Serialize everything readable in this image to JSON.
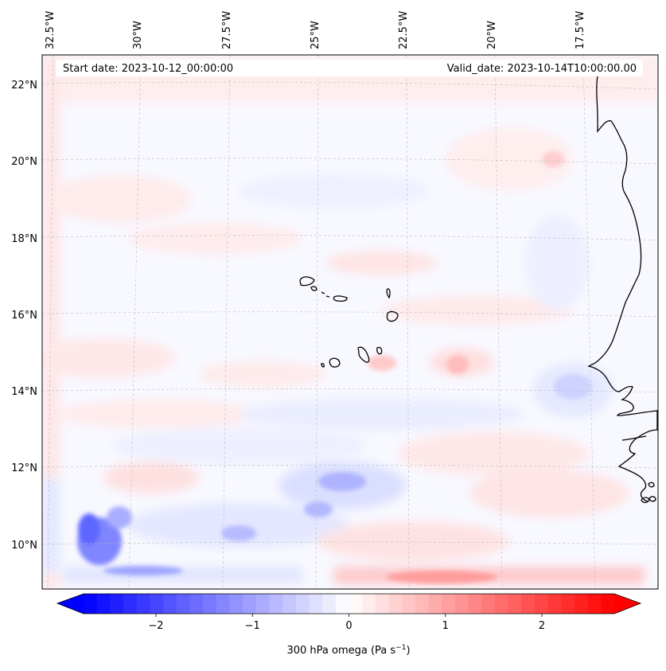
{
  "header": {
    "start_date": "Start date: 2023-10-12_00:00:00",
    "valid_date": "Valid_date: 2023-10-14T10:00:00.00"
  },
  "map": {
    "longitude_labels": [
      "32.5°W",
      "30°W",
      "27.5°W",
      "25°W",
      "22.5°W",
      "20°W",
      "17.5°W"
    ],
    "latitude_labels": [
      "22°N",
      "20°N",
      "18°N",
      "16°N",
      "14°N",
      "12°N",
      "10°N"
    ],
    "extent": {
      "lon_min": -32.7,
      "lon_max": -15.3,
      "lat_min": 8.9,
      "lat_max": 22.7
    },
    "field": "300 hPa omega"
  },
  "colorbar": {
    "label_text": "300 hPa omega (Pa s",
    "label_sup": "−1",
    "label_close": ")",
    "tick_labels": [
      "−2",
      "−1",
      "0",
      "1",
      "2"
    ],
    "tick_values": [
      -2,
      -1,
      0,
      1,
      2
    ],
    "range": [
      -2.75,
      2.75
    ],
    "levels": 40,
    "low_color": "#0000ff",
    "mid_color": "#ffffff",
    "high_color": "#ff0000"
  },
  "colors": {
    "coastline": "#000000",
    "gridline": "#bbbbbb"
  }
}
